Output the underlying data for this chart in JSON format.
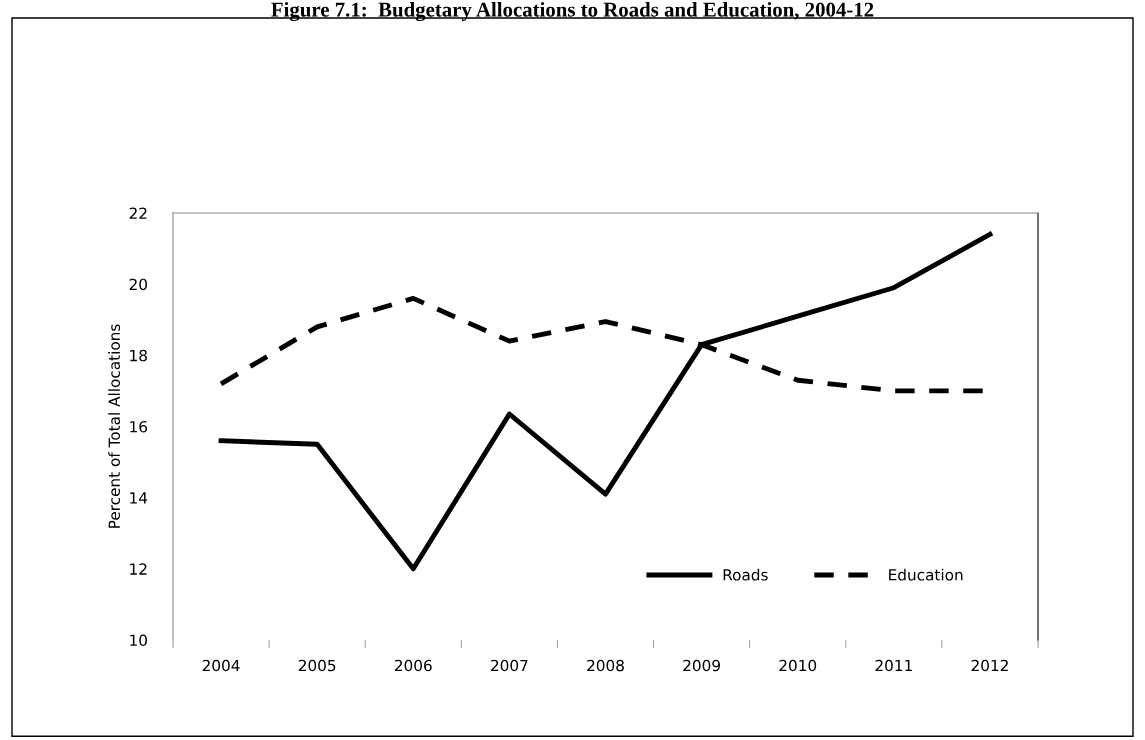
{
  "chart_data": {
    "type": "line",
    "title": "Figure 7.1:  Budgetary Allocations to Roads and Education, 2004-12",
    "ylabel": "Percent of Total Allocations",
    "categories": [
      "2004",
      "2005",
      "2006",
      "2007",
      "2008",
      "2009",
      "2010",
      "2011",
      "2012"
    ],
    "series": [
      {
        "name": "Roads",
        "color": "#000000",
        "line_style": "solid",
        "values": [
          15.6,
          15.5,
          12.0,
          16.35,
          14.1,
          18.3,
          19.1,
          19.9,
          21.4
        ]
      },
      {
        "name": "Education",
        "color": "#000000",
        "line_style": "dashed",
        "values": [
          17.2,
          18.8,
          19.6,
          18.4,
          18.95,
          18.3,
          17.3,
          17.0,
          17.0
        ]
      }
    ],
    "ylim": [
      10,
      22
    ],
    "yticks": [
      10,
      12,
      14,
      16,
      18,
      20,
      22
    ],
    "grid": false,
    "legend": "bottom right",
    "marker": "none"
  }
}
